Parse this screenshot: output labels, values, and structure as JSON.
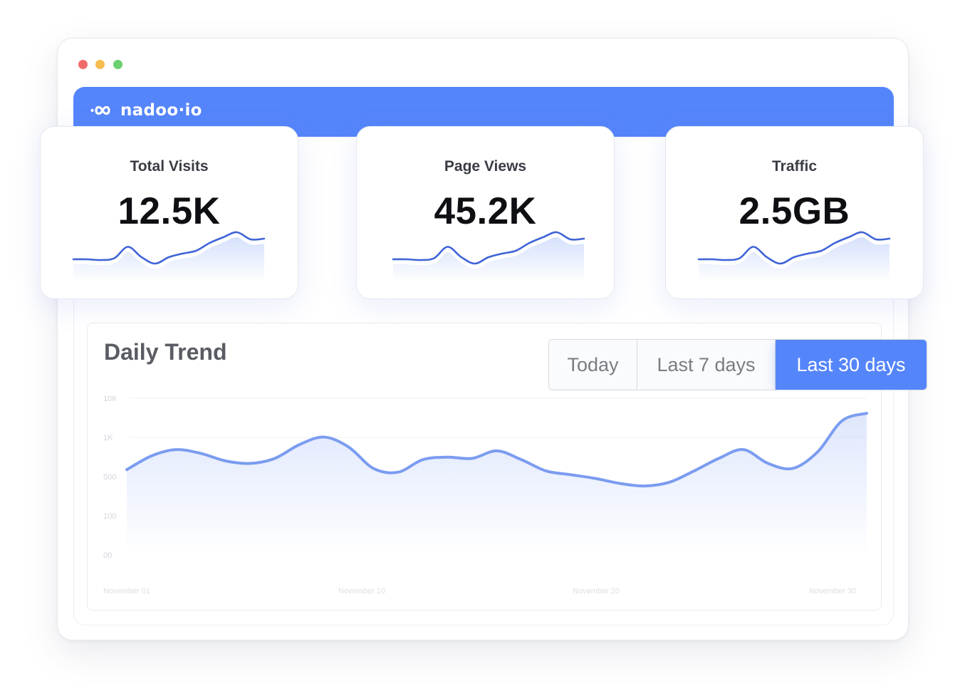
{
  "window": {
    "controls": [
      {
        "name": "close",
        "color": "#f26b6b"
      },
      {
        "name": "minimize",
        "color": "#f7bd4f"
      },
      {
        "name": "maximize",
        "color": "#6cd06f"
      }
    ]
  },
  "header": {
    "brand": "nadoo·io",
    "background": "#5585fb"
  },
  "stats": [
    {
      "label": "Total Visits",
      "value": "12.5K"
    },
    {
      "label": "Page Views",
      "value": "45.2K"
    },
    {
      "label": "Traffic",
      "value": "2.5GB"
    }
  ],
  "sparkline": {
    "color": "#3f63d8",
    "values": [
      2,
      2,
      1.8,
      2.3,
      5.5,
      2.6,
      0.8,
      2.6,
      3.6,
      4.4,
      6.6,
      8.2,
      9.6,
      7.6,
      7.8
    ]
  },
  "daily_trend": {
    "title": "Daily Trend",
    "ranges": [
      "Today",
      "Last 7 days",
      "Last 30 days"
    ],
    "active_range": "Last 30 days",
    "accent": "#5585fb"
  },
  "chart_data": {
    "type": "area",
    "title": "Daily Trend",
    "y_tick_labels": [
      "10K",
      "1K",
      "500",
      "100",
      "00"
    ],
    "x_tick_labels": [
      "November 01",
      "November 10",
      "November 20",
      "November 30"
    ],
    "line_color": "#7b9cf0",
    "grid": true,
    "series": [
      {
        "values": [
          6.8,
          7.9,
          8.4,
          8.1,
          7.5,
          7.3,
          7.7,
          8.8,
          9.4,
          8.6,
          6.9,
          6.6,
          7.6,
          7.8,
          7.7,
          8.3,
          7.6,
          6.7,
          6.4,
          6.1,
          5.7,
          5.5,
          5.8,
          6.7,
          7.7,
          8.4,
          7.3,
          6.9,
          8.2,
          10.7,
          11.3
        ]
      }
    ]
  }
}
